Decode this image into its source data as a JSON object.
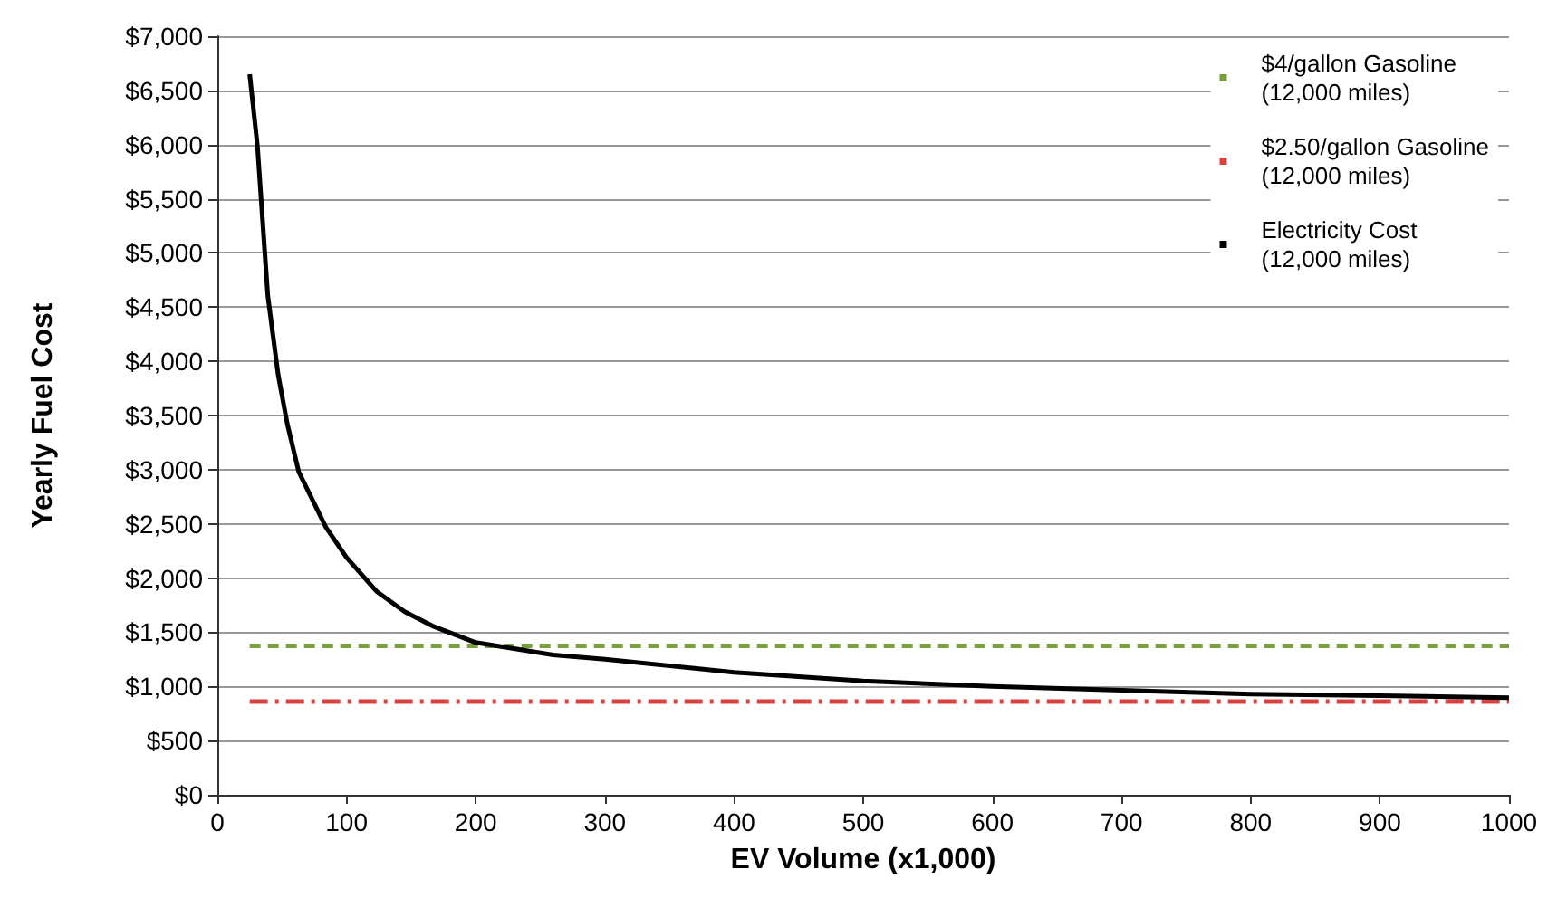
{
  "chart_data": {
    "type": "line",
    "xlabel": "EV Volume (x1,000)",
    "ylabel": "Yearly Fuel Cost",
    "xlim": [
      0,
      1000
    ],
    "xticks": [
      0,
      100,
      200,
      300,
      400,
      500,
      600,
      700,
      800,
      900,
      1000
    ],
    "ylim": [
      0,
      7000
    ],
    "yticks": [
      {
        "value": 0,
        "label": "$0"
      },
      {
        "value": 500,
        "label": "$500"
      },
      {
        "value": 1000,
        "label": "$1,000"
      },
      {
        "value": 1500,
        "label": "$1,500"
      },
      {
        "value": 2000,
        "label": "$2,000"
      },
      {
        "value": 2500,
        "label": "$2,500"
      },
      {
        "value": 3000,
        "label": "$3,000"
      },
      {
        "value": 3500,
        "label": "$3,500"
      },
      {
        "value": 4000,
        "label": "$4,000"
      },
      {
        "value": 4500,
        "label": "$4,500"
      },
      {
        "value": 5000,
        "label": "$5,000"
      },
      {
        "value": 5500,
        "label": "$5,500"
      },
      {
        "value": 6000,
        "label": "$6,000"
      },
      {
        "value": 6500,
        "label": "$6,500"
      },
      {
        "value": 7000,
        "label": "$7,000"
      }
    ],
    "grid": "y",
    "legend": "top right",
    "marker": "none",
    "series": [
      {
        "name": "$4/gallon Gasoline\n(12,000 miles)",
        "color": "#77a03c",
        "line_style": "dashed",
        "x": [
          25,
          1000
        ],
        "values": [
          1375,
          1375
        ]
      },
      {
        "name": "$2.50/gallon Gasoline\n(12,000 miles)",
        "color": "#d9413f",
        "line_style": "dashdot",
        "x": [
          25,
          1000
        ],
        "values": [
          860,
          860
        ]
      },
      {
        "name": "Electricity Cost\n(12,000 miles)",
        "color": "#000000",
        "line_style": "solid",
        "x": [
          25,
          31,
          39,
          47,
          54,
          63,
          84,
          100,
          123,
          145,
          168,
          200,
          260,
          300,
          400,
          500,
          600,
          700,
          800,
          900,
          1000
        ],
        "values": [
          6650,
          5990,
          4610,
          3880,
          3430,
          2980,
          2470,
          2190,
          1880,
          1690,
          1550,
          1405,
          1290,
          1250,
          1130,
          1050,
          1000,
          965,
          930,
          915,
          895
        ]
      }
    ]
  }
}
